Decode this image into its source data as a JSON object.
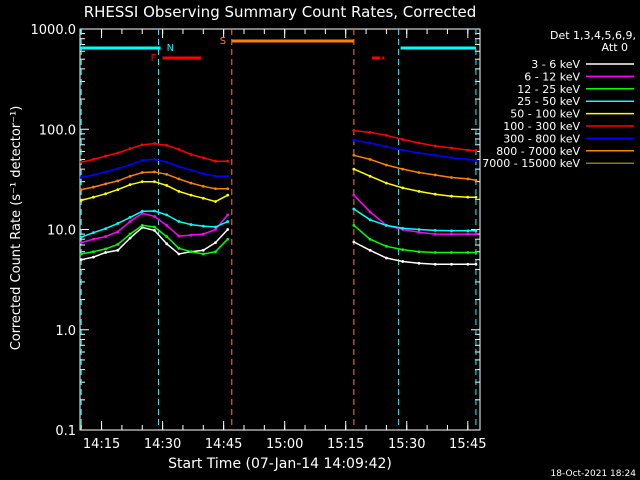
{
  "chart_data": {
    "type": "line",
    "title": "RHESSI Observing Summary Count Rates, Corrected",
    "xlabel": "Start Time (07-Jan-14 14:09:42)",
    "ylabel": "Corrected Count Rate (s⁻¹ detector⁻¹)",
    "x_range": [
      "14:09:42",
      "15:48:00"
    ],
    "ylim": [
      0.1,
      1000
    ],
    "yscale": "log",
    "grid": false,
    "legend_position": "right",
    "x_ticks": [
      "14:15",
      "14:30",
      "14:45",
      "15:00",
      "15:15",
      "15:30",
      "15:45"
    ],
    "y_ticks": [
      "0.1",
      "1.0",
      "10.0",
      "100.0",
      "1000.0"
    ],
    "legend_header": [
      "Det 1,3,4,5,6,9,",
      "Att 0"
    ],
    "footer_date": "18-Oct-2021 18:24",
    "markers": {
      "night_label": "N",
      "flare_label": "F",
      "saa_label": "S",
      "night_color": "#00ffff",
      "flare_color": "#ff0000",
      "saa_color": "#ff8000",
      "night_bars": [
        [
          "14:09:42",
          "14:29:30"
        ],
        [
          "15:28:30",
          "15:47:00"
        ]
      ],
      "night_lines": [
        "14:10:00",
        "14:29:00",
        "15:28:00",
        "15:47:00"
      ],
      "flare_bars": [
        [
          "14:30:00",
          "14:39:30"
        ],
        [
          "15:21:30",
          "15:23:30"
        ],
        [
          "15:24:00",
          "15:24:30"
        ]
      ],
      "saa_bars": [
        [
          "14:47:00",
          "15:17:00"
        ]
      ],
      "saa_lines": [
        "14:47:00",
        "15:17:00"
      ]
    },
    "series": [
      {
        "name": "3 - 6 keV",
        "color": "#ffffff",
        "values_a": [
          5,
          5.3,
          5.9,
          6.2,
          8.2,
          10.5,
          9.8,
          7.2,
          5.7,
          6,
          6.2,
          7.4,
          10
        ],
        "values_b": [
          7.5,
          6.2,
          5.2,
          4.8,
          4.6,
          4.5,
          4.5,
          4.5,
          4.5
        ]
      },
      {
        "name": "6 - 12 keV",
        "color": "#ff00ff",
        "values_a": [
          7.4,
          8,
          8.5,
          9.5,
          12,
          14.5,
          13.5,
          11,
          8.6,
          8.8,
          9,
          10,
          14
        ],
        "values_b": [
          22,
          15,
          11,
          10,
          9.4,
          9,
          9,
          9,
          9
        ]
      },
      {
        "name": "12 - 25 keV",
        "color": "#00ff00",
        "values_a": [
          5.7,
          6,
          6.4,
          7.1,
          9,
          11,
          10.6,
          8.5,
          6.5,
          6,
          5.7,
          6,
          8
        ],
        "values_b": [
          11,
          8,
          6.8,
          6.3,
          6,
          5.9,
          5.9,
          5.9,
          5.9
        ]
      },
      {
        "name": "25 - 50 keV",
        "color": "#00ffff",
        "values_a": [
          8.4,
          9.3,
          10.2,
          11.5,
          13.2,
          15.2,
          15.3,
          14,
          12,
          11.2,
          10.8,
          10.6,
          12
        ],
        "values_b": [
          16,
          12.5,
          11,
          10.3,
          10,
          9.8,
          9.7,
          9.7,
          9.7
        ]
      },
      {
        "name": "50 - 100 keV",
        "color": "#ffff00",
        "values_a": [
          19.5,
          21,
          22.7,
          25,
          28,
          30,
          30,
          27.5,
          24,
          22,
          20.5,
          19,
          22
        ],
        "values_b": [
          40,
          34,
          29,
          26,
          24,
          22.5,
          21.5,
          21,
          21
        ]
      },
      {
        "name": "100 - 300 keV",
        "color": "#ff0000",
        "values_a": [
          47,
          50,
          54,
          58,
          64,
          70,
          72,
          69,
          63,
          56,
          52,
          48,
          48
        ],
        "values_b": [
          97,
          93,
          87,
          79,
          73,
          68,
          65,
          62,
          61
        ]
      },
      {
        "name": "300 - 800 keV",
        "color": "#0000ff",
        "values_a": [
          33,
          35,
          37.5,
          40.5,
          44,
          49,
          50,
          47,
          42.5,
          39,
          36,
          34,
          34
        ],
        "values_b": [
          78,
          73,
          67,
          62,
          58,
          55,
          52,
          50,
          49
        ]
      },
      {
        "name": "800 - 7000 keV",
        "color": "#ff8000",
        "values_a": [
          25,
          26.5,
          28.5,
          30.5,
          34,
          37,
          37.5,
          35.5,
          32,
          29,
          27,
          25.5,
          25.5
        ],
        "values_b": [
          55,
          50,
          44,
          40,
          37,
          35,
          33,
          32,
          31
        ]
      },
      {
        "name": "7000 - 15000 keV",
        "color": "#808000",
        "values_a": [],
        "values_b": []
      }
    ],
    "x_a": [
      "14:10:00",
      "14:13:00",
      "14:16:00",
      "14:19:00",
      "14:22:00",
      "14:25:00",
      "14:28:00",
      "14:31:00",
      "14:34:00",
      "14:37:00",
      "14:40:00",
      "14:43:00",
      "14:46:00"
    ],
    "x_b": [
      "15:17:00",
      "15:21:00",
      "15:25:00",
      "15:29:00",
      "15:33:00",
      "15:37:00",
      "15:41:00",
      "15:45:00",
      "15:47:00"
    ]
  }
}
